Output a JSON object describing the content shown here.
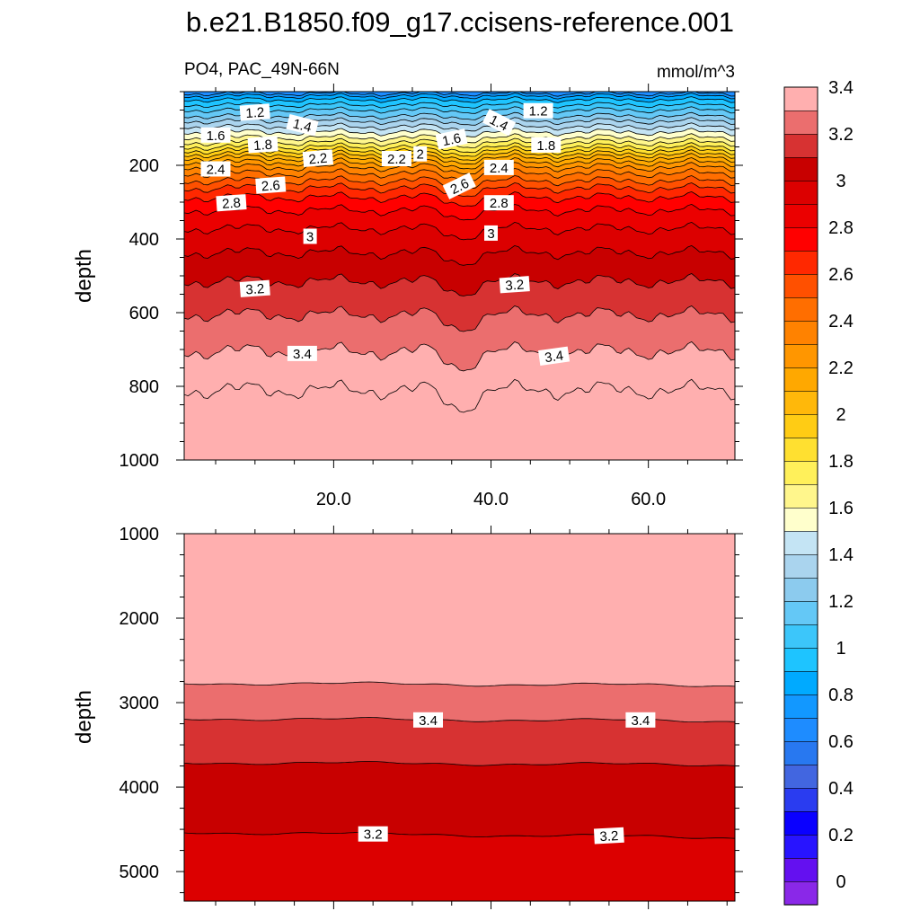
{
  "title": "b.e21.B1850.f09_g17.ccisens-reference.001",
  "left_label": "PO4, PAC_49N-66N",
  "right_label": "mmol/m^3",
  "chart_data": [
    {
      "type": "contour",
      "panel": "upper",
      "ylabel": "depth",
      "xlabel": "",
      "xlim": [
        1,
        71
      ],
      "ylim": [
        0,
        1000
      ],
      "y_inverted": true,
      "xticks": [
        20,
        40,
        60
      ],
      "xtick_labels": [
        "20.0",
        "40.0",
        "60.0"
      ],
      "yticks": [
        200,
        400,
        600,
        800,
        1000
      ],
      "ytick_labels": [
        "200",
        "400",
        "600",
        "800",
        "1000"
      ],
      "contour_labels": [
        {
          "text": "1.2",
          "x": 10,
          "y": 57,
          "angle": -4
        },
        {
          "text": "1.2",
          "x": 46,
          "y": 53,
          "angle": 0
        },
        {
          "text": "1.4",
          "x": 16,
          "y": 92,
          "angle": 14
        },
        {
          "text": "1.4",
          "x": 41,
          "y": 85,
          "angle": 27
        },
        {
          "text": "1.6",
          "x": 5,
          "y": 119,
          "angle": 0
        },
        {
          "text": "1.6",
          "x": 35,
          "y": 130,
          "angle": -12
        },
        {
          "text": "1.8",
          "x": 11,
          "y": 145,
          "angle": -4
        },
        {
          "text": "1.8",
          "x": 47,
          "y": 146,
          "angle": 0
        },
        {
          "text": "2.2",
          "x": 18,
          "y": 182,
          "angle": -5
        },
        {
          "text": "2.2",
          "x": 28,
          "y": 183,
          "angle": 0
        },
        {
          "text": "2",
          "x": 31,
          "y": 170,
          "angle": 0
        },
        {
          "text": "2.4",
          "x": 5,
          "y": 211,
          "angle": 0
        },
        {
          "text": "2.4",
          "x": 41,
          "y": 207,
          "angle": 0
        },
        {
          "text": "2.6",
          "x": 12,
          "y": 255,
          "angle": -4
        },
        {
          "text": "2.6",
          "x": 36,
          "y": 257,
          "angle": -26
        },
        {
          "text": "2.8",
          "x": 7,
          "y": 303,
          "angle": -4
        },
        {
          "text": "2.8",
          "x": 41,
          "y": 303,
          "angle": 0
        },
        {
          "text": "3",
          "x": 17,
          "y": 394,
          "angle": 0
        },
        {
          "text": "3",
          "x": 40,
          "y": 385,
          "angle": 0
        },
        {
          "text": "3.2",
          "x": 10,
          "y": 536,
          "angle": -4
        },
        {
          "text": "3.2",
          "x": 43,
          "y": 525,
          "angle": -4
        },
        {
          "text": "3.4",
          "x": 16,
          "y": 712,
          "angle": 0
        },
        {
          "text": "3.4",
          "x": 48,
          "y": 719,
          "angle": -8
        }
      ]
    },
    {
      "type": "contour",
      "panel": "lower",
      "ylabel": "depth",
      "xlim": [
        1,
        71
      ],
      "ylim": [
        1000,
        5350
      ],
      "y_inverted": true,
      "yticks": [
        1000,
        2000,
        3000,
        4000,
        5000
      ],
      "ytick_labels": [
        "1000",
        "2000",
        "3000",
        "4000",
        "5000"
      ],
      "contour_labels": [
        {
          "text": "3.4",
          "x": 32,
          "y": 3210,
          "angle": 0
        },
        {
          "text": "3.4",
          "x": 59,
          "y": 3210,
          "angle": 0
        },
        {
          "text": "3.2",
          "x": 25,
          "y": 4560,
          "angle": 0
        },
        {
          "text": "3.2",
          "x": 55,
          "y": 4580,
          "angle": -3
        }
      ]
    }
  ],
  "colorbar": {
    "labels": [
      {
        "text": "3.4",
        "value": 3.4
      },
      {
        "text": "3.2",
        "value": 3.2
      },
      {
        "text": "3",
        "value": 3.0
      },
      {
        "text": "2.8",
        "value": 2.8
      },
      {
        "text": "2.6",
        "value": 2.6
      },
      {
        "text": "2.4",
        "value": 2.4
      },
      {
        "text": "2.2",
        "value": 2.2
      },
      {
        "text": "2",
        "value": 2.0
      },
      {
        "text": "1.8",
        "value": 1.8
      },
      {
        "text": "1.6",
        "value": 1.6
      },
      {
        "text": "1.4",
        "value": 1.4
      },
      {
        "text": "1.2",
        "value": 1.2
      },
      {
        "text": "1",
        "value": 1.0
      },
      {
        "text": "0.8",
        "value": 0.8
      },
      {
        "text": "0.6",
        "value": 0.6
      },
      {
        "text": "0.4",
        "value": 0.4
      },
      {
        "text": "0.2",
        "value": 0.2
      },
      {
        "text": "0",
        "value": 0.0
      }
    ],
    "colors": [
      "#8a28e8",
      "#6410f0",
      "#2814ff",
      "#0a00ff",
      "#2a3cf0",
      "#4266e0",
      "#2878f0",
      "#1e8cff",
      "#1298ff",
      "#00aaff",
      "#1ec4ff",
      "#3cc6fa",
      "#64c8f6",
      "#8ccbee",
      "#aad4ee",
      "#c4e4f4",
      "#ffffcc",
      "#fff68c",
      "#fff05a",
      "#ffe030",
      "#ffcc14",
      "#ffb80a",
      "#ffa800",
      "#ff9600",
      "#ff8200",
      "#ff6e00",
      "#ff5000",
      "#ff2800",
      "#ff0000",
      "#eb0000",
      "#dc0000",
      "#c80000",
      "#d73232",
      "#eb6e6e",
      "#ffafaf"
    ]
  }
}
